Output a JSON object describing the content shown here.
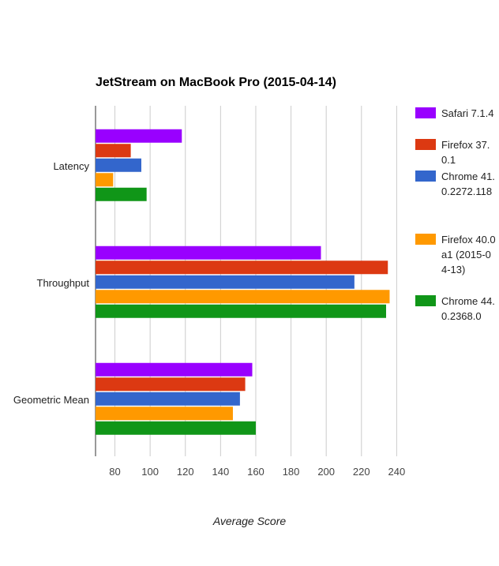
{
  "chart_data": {
    "type": "bar",
    "orientation": "horizontal",
    "title": "JetStream on MacBook Pro (2015-04-14)",
    "xlabel": "Average Score",
    "ylabel": "",
    "categories": [
      "Latency",
      "Throughput",
      "Geometric Mean"
    ],
    "series": [
      {
        "name": "Safari 7.1.4",
        "color": "#9900ff",
        "values": [
          118,
          197,
          158
        ]
      },
      {
        "name": "Firefox 37.0.1",
        "color": "#dc3912",
        "values": [
          89,
          235,
          154
        ]
      },
      {
        "name": "Chrome 41.0.2272.118",
        "color": "#3366cc",
        "values": [
          95,
          216,
          151
        ]
      },
      {
        "name": "Firefox 40.0a1 (2015-04-13)",
        "color": "#ff9900",
        "values": [
          79,
          236,
          147
        ]
      },
      {
        "name": "Chrome 44.0.2368.0",
        "color": "#109618",
        "values": [
          98,
          234,
          160
        ]
      }
    ],
    "xlim": [
      69,
      247
    ],
    "ticks": [
      80,
      100,
      120,
      140,
      160,
      180,
      200,
      220,
      240
    ],
    "grid": true,
    "legend_position": "right"
  }
}
